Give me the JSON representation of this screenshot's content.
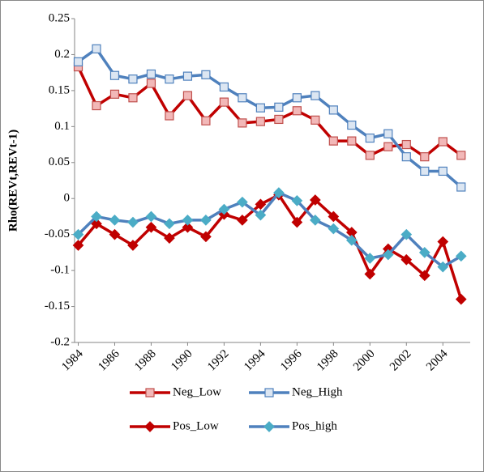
{
  "chart_data": {
    "type": "line",
    "y_label": "Rho(REVt,REVt-1)",
    "x": [
      1984,
      1985,
      1986,
      1987,
      1988,
      1989,
      1990,
      1991,
      1992,
      1993,
      1994,
      1995,
      1996,
      1997,
      1998,
      1999,
      2000,
      2001,
      2002,
      2003,
      2004,
      2005
    ],
    "xlim": [
      1983.8,
      2005.5
    ],
    "xticks": [
      1984,
      1986,
      1988,
      1990,
      1992,
      1994,
      1996,
      1998,
      2000,
      2002,
      2004
    ],
    "ylim": [
      -0.2,
      0.25
    ],
    "yticks": [
      -0.2,
      -0.15,
      -0.1,
      -0.05,
      0,
      0.05,
      0.1,
      0.15,
      0.2,
      0.25
    ],
    "grid": false,
    "legend": "bottom",
    "series": [
      {
        "name": "Neg_Low",
        "color": "#c00000",
        "marker": "square",
        "marker_fill": "#f2b8b8",
        "marker_stroke": "#c0504d",
        "values": [
          0.183,
          0.129,
          0.145,
          0.14,
          0.16,
          0.115,
          0.143,
          0.108,
          0.134,
          0.105,
          0.107,
          0.11,
          0.122,
          0.109,
          0.08,
          0.08,
          0.06,
          0.072,
          0.075,
          0.058,
          0.079,
          0.06
        ]
      },
      {
        "name": "Neg_High",
        "color": "#4f81bd",
        "marker": "square",
        "marker_fill": "#dce6f2",
        "marker_stroke": "#4f81bd",
        "values": [
          0.19,
          0.208,
          0.171,
          0.166,
          0.173,
          0.166,
          0.17,
          0.172,
          0.155,
          0.14,
          0.126,
          0.127,
          0.14,
          0.143,
          0.123,
          0.102,
          0.084,
          0.09,
          0.058,
          0.038,
          0.038,
          0.016
        ]
      },
      {
        "name": "Pos_Low",
        "color": "#c00000",
        "marker": "diamond",
        "marker_fill": "#c00000",
        "marker_stroke": "#c00000",
        "values": [
          -0.065,
          -0.035,
          -0.05,
          -0.065,
          -0.04,
          -0.055,
          -0.04,
          -0.053,
          -0.022,
          -0.03,
          -0.008,
          0.005,
          -0.033,
          -0.002,
          -0.025,
          -0.047,
          -0.105,
          -0.07,
          -0.085,
          -0.107,
          -0.06,
          -0.14
        ]
      },
      {
        "name": "Pos_high",
        "color": "#4f81bd",
        "marker": "diamond",
        "marker_fill": "#4bacc6",
        "marker_stroke": "#4bacc6",
        "values": [
          -0.05,
          -0.025,
          -0.03,
          -0.033,
          -0.025,
          -0.035,
          -0.03,
          -0.03,
          -0.015,
          -0.005,
          -0.023,
          0.008,
          -0.003,
          -0.03,
          -0.042,
          -0.058,
          -0.083,
          -0.078,
          -0.05,
          -0.075,
          -0.095,
          -0.08
        ]
      }
    ]
  }
}
